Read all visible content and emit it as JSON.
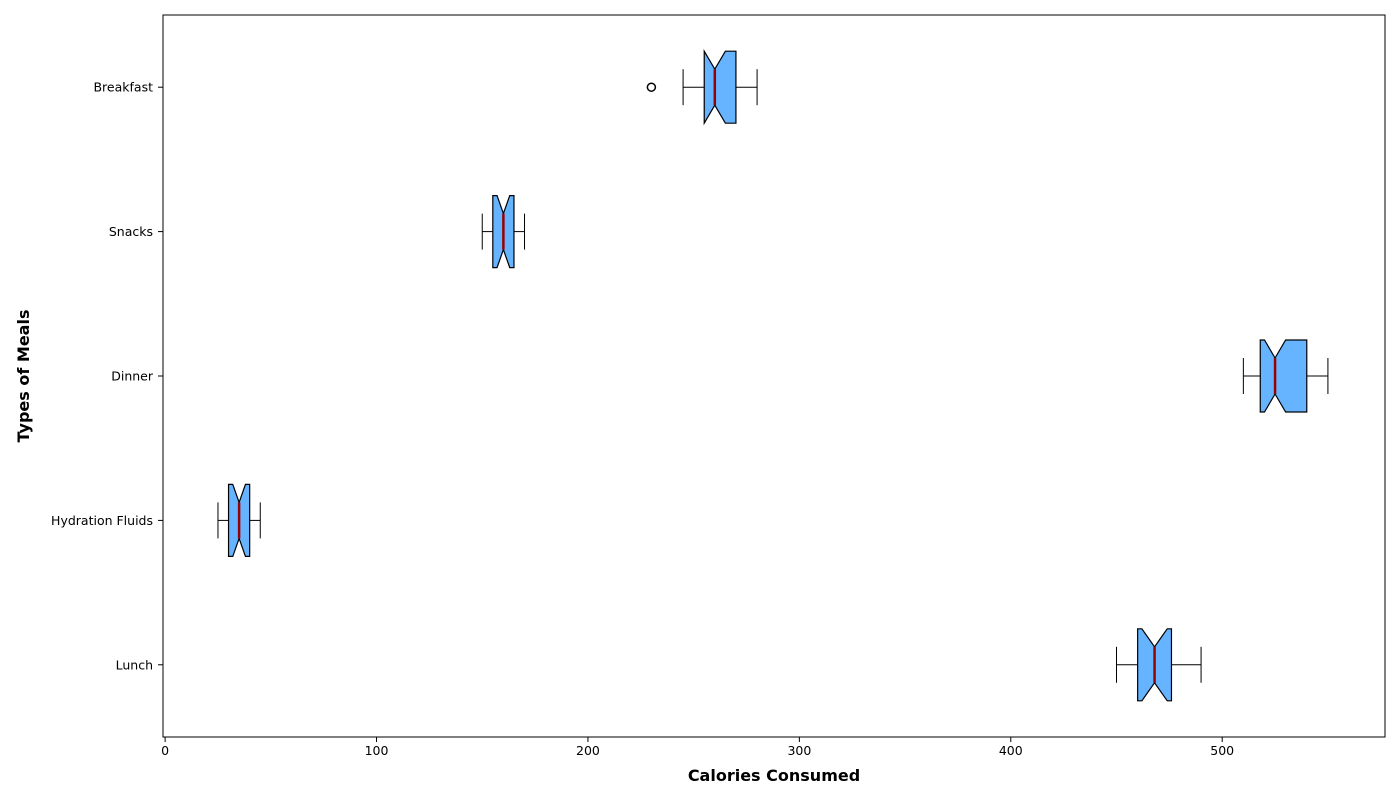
{
  "chart_data": {
    "type": "boxplot",
    "orientation": "horizontal",
    "notched": true,
    "xlabel": "Calories Consumed",
    "ylabel": "Types of Meals",
    "xlim": [
      -1,
      577
    ],
    "xticks": [
      0,
      100,
      200,
      300,
      400,
      500
    ],
    "grid": false,
    "categories": [
      "Lunch",
      "Hydration Fluids",
      "Dinner",
      "Snacks",
      "Breakfast"
    ],
    "boxes": [
      {
        "label": "Lunch",
        "whisker_low": 450,
        "q1": 460,
        "median": 468,
        "q3": 476,
        "whisker_high": 490,
        "notch_low": 462,
        "notch_high": 474,
        "outliers": []
      },
      {
        "label": "Hydration Fluids",
        "whisker_low": 25,
        "q1": 30,
        "median": 35,
        "q3": 40,
        "whisker_high": 45,
        "notch_low": 32,
        "notch_high": 38,
        "outliers": []
      },
      {
        "label": "Dinner",
        "whisker_low": 510,
        "q1": 518,
        "median": 525,
        "q3": 540,
        "whisker_high": 550,
        "notch_low": 520,
        "notch_high": 530,
        "outliers": []
      },
      {
        "label": "Snacks",
        "whisker_low": 150,
        "q1": 155,
        "median": 160,
        "q3": 165,
        "whisker_high": 170,
        "notch_low": 157,
        "notch_high": 163,
        "outliers": []
      },
      {
        "label": "Breakfast",
        "whisker_low": 245,
        "q1": 255,
        "median": 260,
        "q3": 270,
        "whisker_high": 280,
        "notch_low": 255,
        "notch_high": 265,
        "outliers": [
          230
        ]
      }
    ],
    "colors": {
      "box_fill": "#66b3ff",
      "box_edge": "#000000",
      "median": "#990000",
      "whisker": "#000000"
    }
  }
}
